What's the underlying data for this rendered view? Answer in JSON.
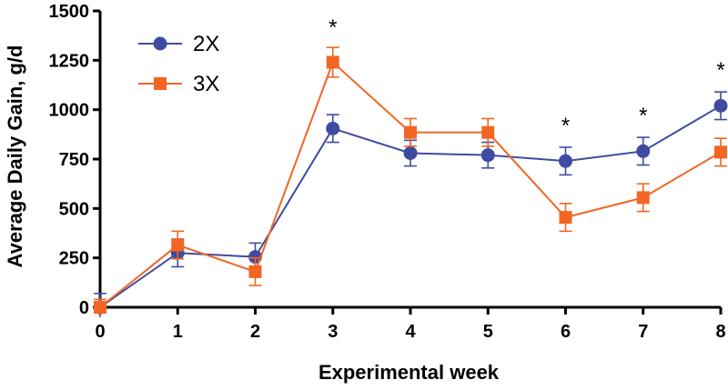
{
  "chart_data": {
    "type": "line",
    "title": "",
    "xlabel": "Experimental week",
    "ylabel": "Average Daily Gain, g/d",
    "x": [
      0,
      1,
      2,
      3,
      4,
      5,
      6,
      7,
      8
    ],
    "x_tick_labels": [
      "0",
      "1",
      "2",
      "3",
      "4",
      "5",
      "6",
      "7",
      "8"
    ],
    "xlim": [
      0,
      8
    ],
    "ylim": [
      0,
      1500
    ],
    "y_ticks": [
      0,
      250,
      500,
      750,
      1000,
      1250,
      1500
    ],
    "y_tick_labels": [
      "0",
      "250",
      "500",
      "750",
      "1000",
      "1250",
      "1500"
    ],
    "grid": false,
    "legend_position": "top-left",
    "series": [
      {
        "name": "2X",
        "color": "#3F4BA0",
        "marker": "circle",
        "values": [
          0,
          275,
          255,
          905,
          780,
          770,
          740,
          790,
          1020
        ],
        "errors": [
          70,
          70,
          70,
          70,
          65,
          65,
          70,
          70,
          70
        ]
      },
      {
        "name": "3X",
        "color": "#F26522",
        "marker": "square",
        "values": [
          0,
          315,
          180,
          1240,
          885,
          885,
          455,
          555,
          785
        ],
        "errors": [
          40,
          70,
          70,
          75,
          70,
          70,
          70,
          70,
          70
        ]
      }
    ],
    "annotations": [
      {
        "text": "*",
        "x": 3
      },
      {
        "text": "*",
        "x": 6
      },
      {
        "text": "*",
        "x": 7
      },
      {
        "text": "*",
        "x": 8
      }
    ]
  }
}
